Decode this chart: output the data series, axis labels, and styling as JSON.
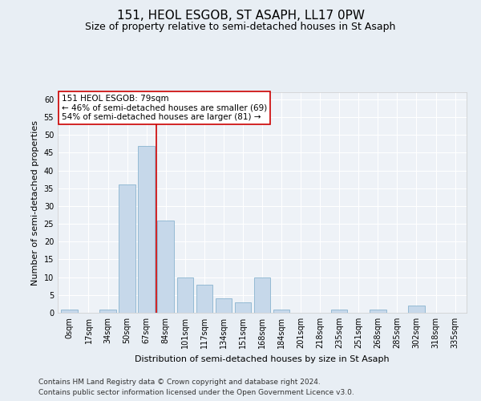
{
  "title": "151, HEOL ESGOB, ST ASAPH, LL17 0PW",
  "subtitle": "Size of property relative to semi-detached houses in St Asaph",
  "xlabel": "Distribution of semi-detached houses by size in St Asaph",
  "ylabel": "Number of semi-detached properties",
  "categories": [
    "0sqm",
    "17sqm",
    "34sqm",
    "50sqm",
    "67sqm",
    "84sqm",
    "101sqm",
    "117sqm",
    "134sqm",
    "151sqm",
    "168sqm",
    "184sqm",
    "201sqm",
    "218sqm",
    "235sqm",
    "251sqm",
    "268sqm",
    "285sqm",
    "302sqm",
    "318sqm",
    "335sqm"
  ],
  "values": [
    1,
    0,
    1,
    36,
    47,
    26,
    10,
    8,
    4,
    3,
    10,
    1,
    0,
    0,
    1,
    0,
    1,
    0,
    2,
    0,
    0
  ],
  "bar_color": "#c6d8ea",
  "bar_edge_color": "#7aaac8",
  "vline_x": 4.5,
  "vline_color": "#cc0000",
  "annotation_text": "151 HEOL ESGOB: 79sqm\n← 46% of semi-detached houses are smaller (69)\n54% of semi-detached houses are larger (81) →",
  "annotation_box_color": "#ffffff",
  "annotation_box_edge": "#cc0000",
  "ylim": [
    0,
    62
  ],
  "yticks": [
    0,
    5,
    10,
    15,
    20,
    25,
    30,
    35,
    40,
    45,
    50,
    55,
    60
  ],
  "footer1": "Contains HM Land Registry data © Crown copyright and database right 2024.",
  "footer2": "Contains public sector information licensed under the Open Government Licence v3.0.",
  "bg_color": "#e8eef4",
  "plot_bg_color": "#eef2f7",
  "title_fontsize": 11,
  "subtitle_fontsize": 9,
  "axis_label_fontsize": 8,
  "tick_fontsize": 7,
  "annotation_fontsize": 7.5,
  "footer_fontsize": 6.5
}
